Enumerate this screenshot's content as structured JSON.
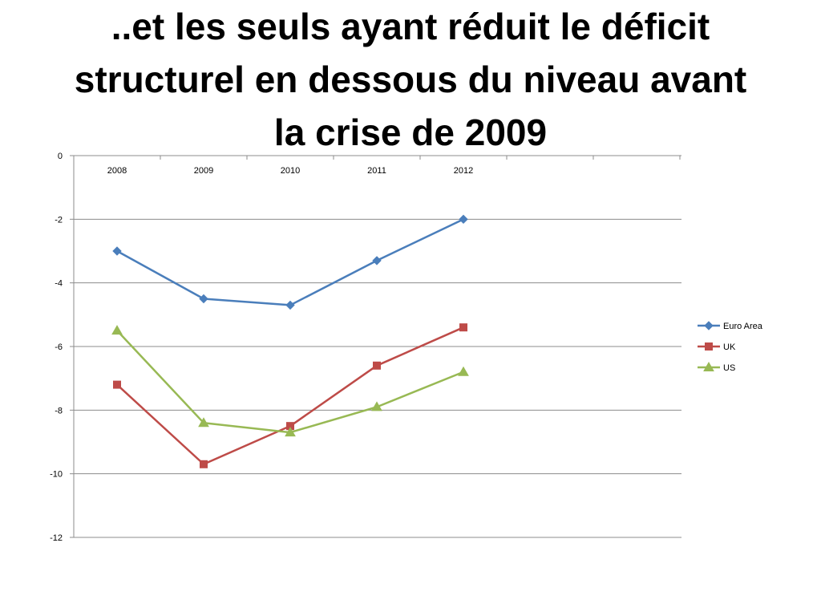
{
  "slide": {
    "title_lines": [
      "..et les seuls ayant réduit le déficit",
      "structurel en dessous du niveau avant",
      "la crise de 2009"
    ]
  },
  "chart_data": {
    "type": "line",
    "categories": [
      "2008",
      "2009",
      "2010",
      "2011",
      "2012"
    ],
    "series": [
      {
        "name": "Euro Area",
        "values": [
          -3.0,
          -4.5,
          -4.7,
          -3.3,
          -2.0
        ],
        "color": "#4a7ebb",
        "marker": "diamond"
      },
      {
        "name": "UK",
        "values": [
          -7.2,
          -9.7,
          -8.5,
          -6.6,
          -5.4
        ],
        "color": "#be4b48",
        "marker": "square"
      },
      {
        "name": "US",
        "values": [
          -5.5,
          -8.4,
          -8.7,
          -7.9,
          -6.8
        ],
        "color": "#98b954",
        "marker": "triangle"
      }
    ],
    "ylim": [
      -12,
      0
    ],
    "yticks": [
      0,
      -2,
      -4,
      -6,
      -8,
      -10,
      -12
    ],
    "grid": true,
    "legend_position": "right",
    "xaxis_position": "top"
  }
}
